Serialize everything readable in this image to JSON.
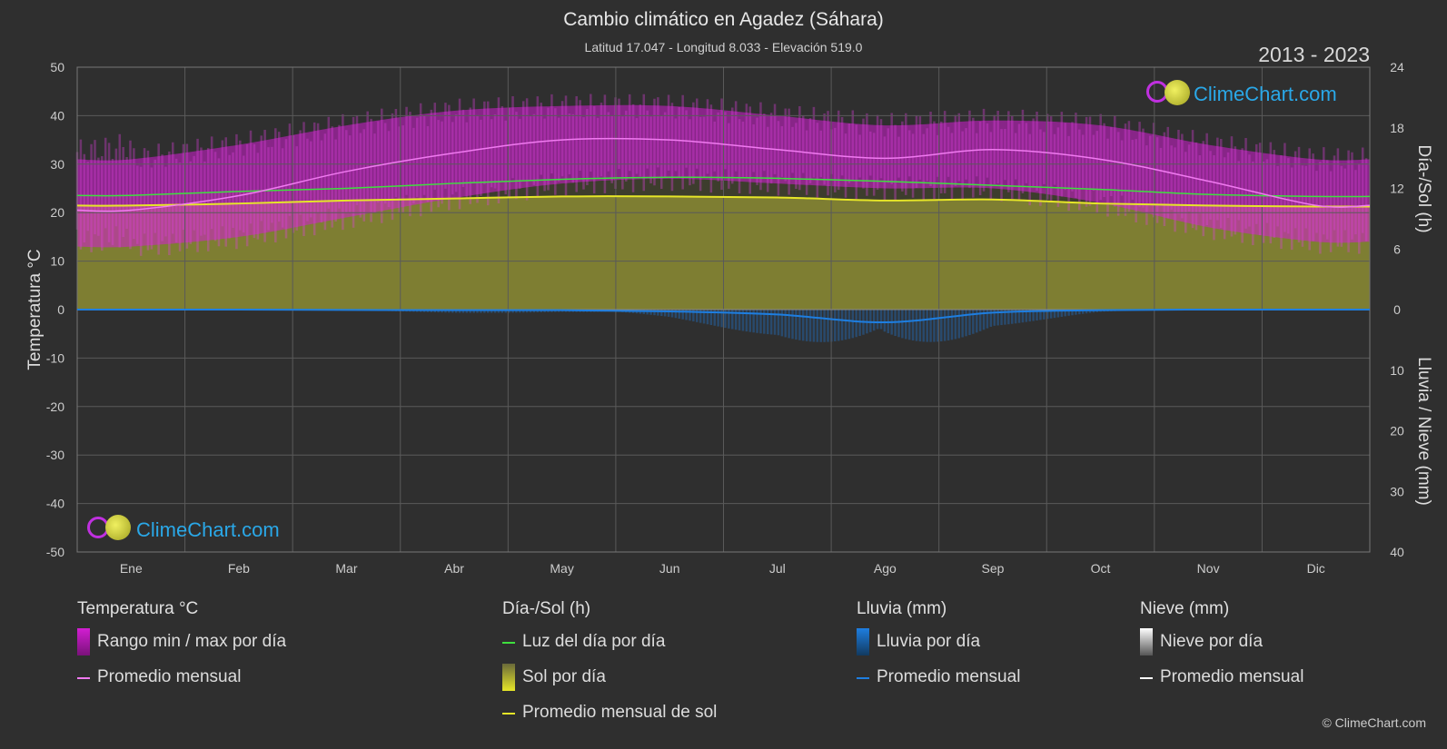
{
  "header": {
    "title": "Cambio climático en Agadez (Sáhara)",
    "subtitle": "Latitud 17.047 - Longitud 8.033 - Elevación 519.0",
    "years": "2013 - 2023"
  },
  "brand": {
    "name": "ClimeChart.com",
    "copyright": "© ClimeChart.com"
  },
  "colors": {
    "background": "#2f2f2f",
    "temp_range": "#d21ed2",
    "temp_avg": "#f07af0",
    "daylight": "#3ee03e",
    "sun": "#b4b43a",
    "sun_avg": "#e6e628",
    "rain": "#1e7ee0",
    "snow": "#ffffff"
  },
  "legend": {
    "temperature": {
      "header": "Temperatura °C",
      "range": "Rango min / max por día",
      "avg": "Promedio mensual"
    },
    "sun": {
      "header": "Día-/Sol (h)",
      "daylight": "Luz del día por día",
      "sun_per_day": "Sol por día",
      "sun_avg": "Promedio mensual de sol"
    },
    "rain": {
      "header": "Lluvia (mm)",
      "rain_per_day": "Lluvia por día",
      "avg": "Promedio mensual"
    },
    "snow": {
      "header": "Nieve (mm)",
      "snow_per_day": "Nieve por día",
      "avg": "Promedio mensual"
    }
  },
  "chart_data": {
    "type": "area",
    "categories": [
      "Ene",
      "Feb",
      "Mar",
      "Abr",
      "May",
      "Jun",
      "Jul",
      "Ago",
      "Sep",
      "Oct",
      "Nov",
      "Dic"
    ],
    "y_left": {
      "label": "Temperatura °C",
      "range": [
        -50,
        50
      ],
      "ticks": [
        50,
        40,
        30,
        20,
        10,
        0,
        -10,
        -20,
        -30,
        -40,
        -50
      ]
    },
    "y_right_top": {
      "label": "Día-/Sol (h)",
      "range": [
        0,
        24
      ],
      "ticks": [
        24,
        18,
        12,
        6,
        0
      ]
    },
    "y_right_bottom": {
      "label": "Lluvia / Nieve (mm)",
      "range": [
        0,
        40
      ],
      "ticks": [
        10,
        20,
        30,
        40
      ]
    },
    "grid": true,
    "series": [
      {
        "name": "Rango min / max por día",
        "kind": "range",
        "min": [
          13,
          15,
          19,
          23,
          26,
          27,
          26,
          25,
          25,
          22,
          17,
          14
        ],
        "max": [
          31,
          34,
          38,
          41,
          42,
          42,
          40,
          38,
          39,
          38,
          34,
          31
        ]
      },
      {
        "name": "Promedio mensual",
        "kind": "temp_avg",
        "values": [
          20.5,
          23.5,
          28.5,
          32.3,
          35,
          35,
          33,
          31.2,
          33,
          31,
          26.5,
          21.5
        ]
      },
      {
        "name": "Luz del día por día",
        "kind": "daylight",
        "values": [
          11.3,
          11.7,
          12.0,
          12.5,
          12.9,
          13.1,
          13.0,
          12.7,
          12.3,
          11.9,
          11.4,
          11.2
        ]
      },
      {
        "name": "Promedio mensual de sol",
        "kind": "sun_avg",
        "values": [
          10.3,
          10.5,
          10.8,
          11.0,
          11.2,
          11.2,
          11.1,
          10.8,
          10.9,
          10.5,
          10.3,
          10.2
        ]
      },
      {
        "name": "Promedio mensual",
        "kind": "rain_avg",
        "values": [
          0,
          0,
          0.05,
          0.1,
          0.1,
          0.3,
          0.8,
          2.1,
          0.5,
          0.1,
          0,
          0
        ]
      }
    ]
  }
}
